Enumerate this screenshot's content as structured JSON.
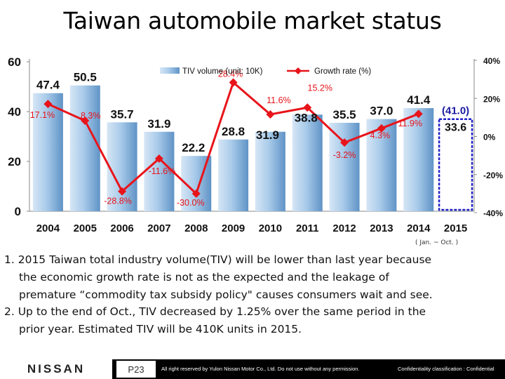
{
  "page": {
    "title": "Taiwan automobile market status",
    "unit_note": "( Jan. ~ Oct. )"
  },
  "chart_data": {
    "type": "bar+line",
    "categories": [
      "2004",
      "2005",
      "2006",
      "2007",
      "2008",
      "2009",
      "2010",
      "2011",
      "2012",
      "2013",
      "2014",
      "2015"
    ],
    "series": [
      {
        "name": "TIV volume (unit: 10K)",
        "type": "bar",
        "axis": "left",
        "values": [
          47.4,
          50.5,
          35.7,
          31.9,
          22.2,
          28.8,
          31.9,
          38.8,
          35.5,
          37.0,
          41.4,
          null
        ],
        "labels": [
          "47.4",
          "50.5",
          "35.7",
          "31.9",
          "22.2",
          "28.8",
          "31.9",
          "38.8",
          "35.5",
          "37.0",
          "41.4",
          ""
        ]
      },
      {
        "name": "Growth rate (%)",
        "type": "line",
        "axis": "right",
        "color": "#e8141b",
        "values": [
          17.1,
          8.3,
          -28.8,
          -11.6,
          -30.0,
          28.4,
          11.6,
          15.2,
          -3.2,
          4.3,
          11.9,
          null
        ],
        "labels": [
          "17.1%",
          "8.3%",
          "-28.8%",
          "-11.6%",
          "-30.0%",
          "28.4%",
          "11.6%",
          "15.2%",
          "-3.2%",
          "4.3%",
          "11.9%",
          ""
        ]
      }
    ],
    "forecast_2015": {
      "estimate_label": "(41.0)",
      "estimate_value": 41.0,
      "actual_label": "33.6",
      "actual_value": 33.6,
      "estimate_color": "#1a1aa0",
      "box_color": "#2020c8"
    },
    "left_axis": {
      "ylim": [
        0,
        60
      ],
      "ticks": [
        "0",
        "20",
        "40",
        "60"
      ]
    },
    "right_axis": {
      "ylim": [
        -40,
        40
      ],
      "ticks": [
        "40%",
        "20%",
        "0%",
        "-20%",
        "-40%"
      ]
    },
    "legend": {
      "position": "top-center",
      "bar_label": "TIV volume (unit: 10K)",
      "line_label": "Growth rate (%)"
    },
    "colors": {
      "bar": "#a9cbea",
      "bar_dark": "#5f93c6",
      "line": "#e8141b",
      "plot_bg": "#ffffff"
    }
  },
  "body": {
    "item1_line1": "1. 2015 Taiwan total industry volume(TIV) will be lower than last year because",
    "item1_line2": "the economic growth rate is  not as the expected and the leakage of",
    "item1_line3": "premature  “commodity tax subsidy policy\" causes consumers wait and see.",
    "item2_line1": "2. Up to the end of Oct., TIV decreased by 1.25% over the same period in the",
    "item2_line2": "prior year.  Estimated TIV will be 410K units in 2015."
  },
  "footer": {
    "logo": "NISSAN",
    "page_number": "P23",
    "copyright": "All right reserved by Yulon Nissan Motor Co., Ltd. Do not use without any permission.",
    "confidential": "Confidentiality classification : Confidential"
  }
}
